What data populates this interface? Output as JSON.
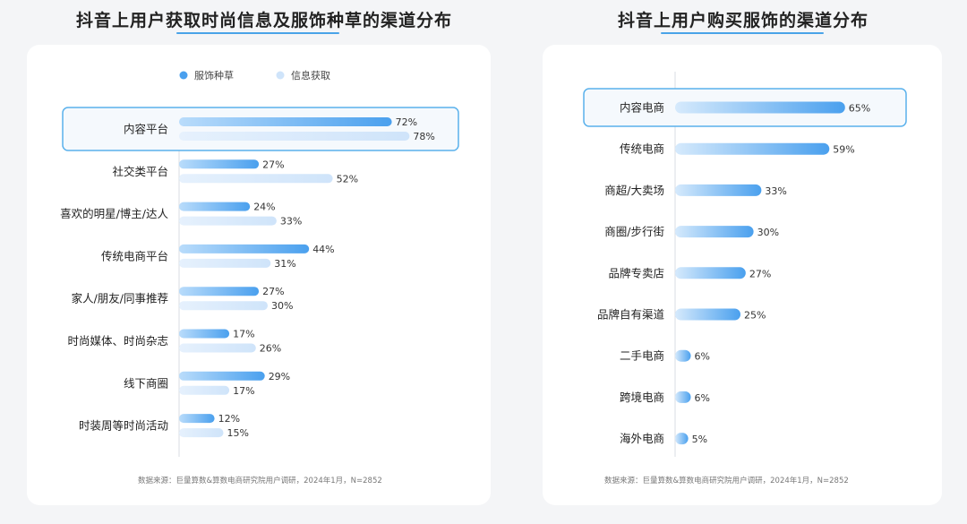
{
  "chart_data": [
    {
      "type": "bar",
      "title": "抖音上用户获取时尚信息及服饰种草的渠道分布",
      "orientation": "horizontal",
      "categories": [
        "内容平台",
        "社交类平台",
        "喜欢的明星/博主/达人",
        "传统电商平台",
        "家人/朋友/同事推荐",
        "时尚媒体、时尚杂志",
        "线下商圈",
        "时装周等时尚活动"
      ],
      "series": [
        {
          "name": "服饰种草",
          "values": [
            72,
            27,
            24,
            44,
            27,
            17,
            29,
            12
          ],
          "color": "#4aa0ee"
        },
        {
          "name": "信息获取",
          "values": [
            78,
            52,
            33,
            31,
            30,
            26,
            17,
            15
          ],
          "color": "#cfe4fa"
        }
      ],
      "value_suffix": "%",
      "highlight_category": "内容平台",
      "legend_position": "top",
      "source": "数据来源：巨量算数&算数电商研究院用户调研，2024年1月，N=2852"
    },
    {
      "type": "bar",
      "title": "抖音上用户购买服饰的渠道分布",
      "orientation": "horizontal",
      "categories": [
        "内容电商",
        "传统电商",
        "商超/大卖场",
        "商圈/步行街",
        "品牌专卖店",
        "品牌自有渠道",
        "二手电商",
        "跨境电商",
        "海外电商"
      ],
      "series": [
        {
          "values": [
            65,
            59,
            33,
            30,
            27,
            25,
            6,
            6,
            5
          ],
          "color": "#4aa0ee"
        }
      ],
      "value_suffix": "%",
      "highlight_category": "内容电商",
      "source": "数据来源：巨量算数&算数电商研究院用户调研，2024年1月，N=2852"
    }
  ]
}
